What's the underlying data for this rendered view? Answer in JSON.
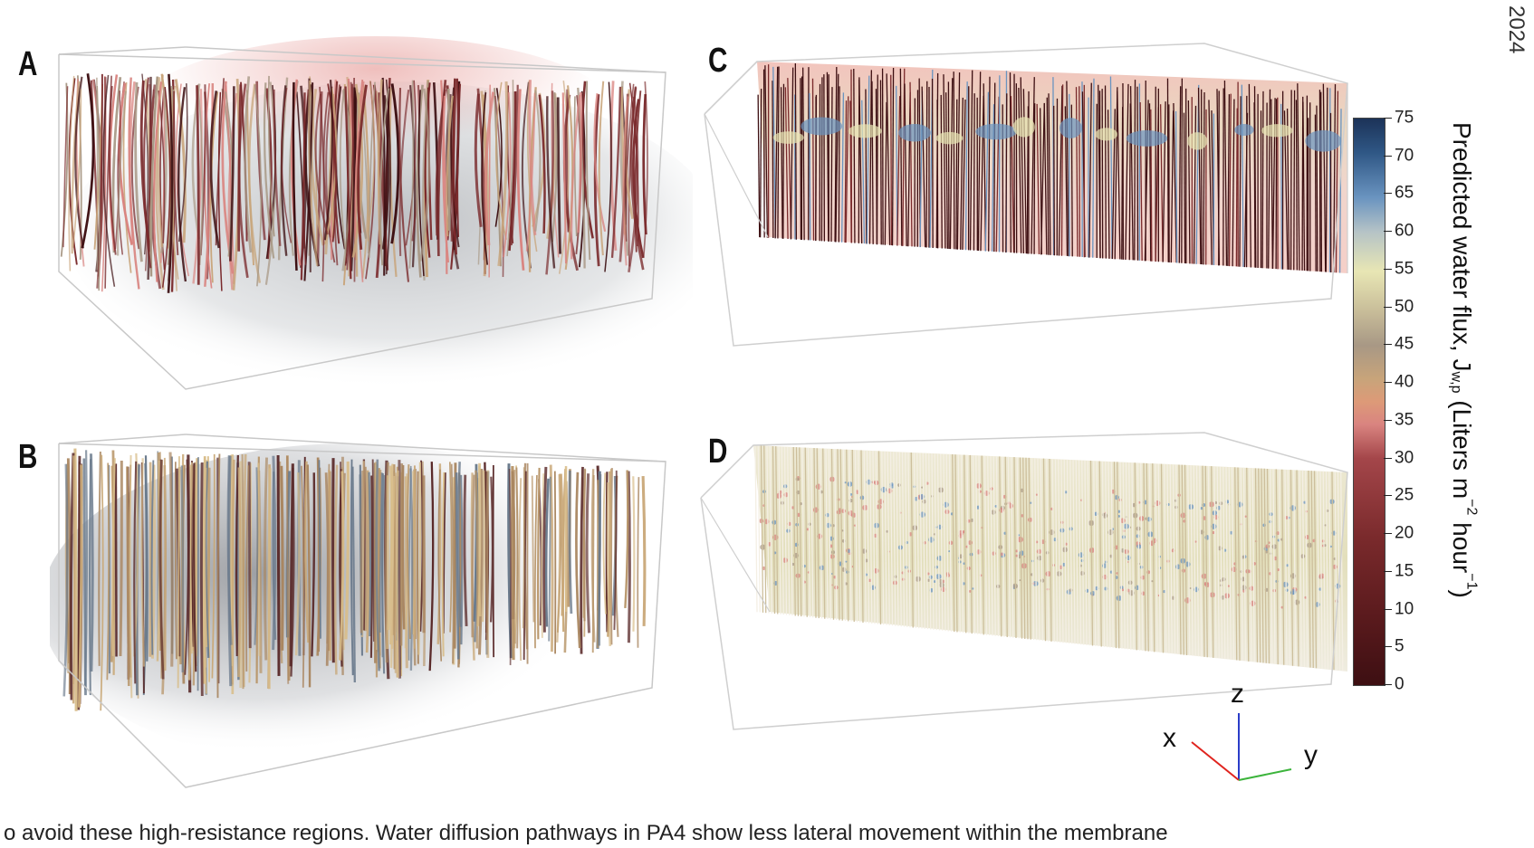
{
  "panels": {
    "a": "A",
    "b": "B",
    "c": "C",
    "d": "D"
  },
  "year_fragment": "2024",
  "colorbar": {
    "title_main": "Predicted water flux, J",
    "title_sub": "w,p",
    "title_units_open": " (Liters m",
    "title_sup1": "−2",
    "title_units_mid": " hour",
    "title_sup2": "−1",
    "title_units_close": ")",
    "ticks": [
      "75",
      "70",
      "65",
      "60",
      "55",
      "50",
      "45",
      "40",
      "35",
      "30",
      "25",
      "20",
      "15",
      "10",
      "5",
      "0"
    ],
    "min": 0,
    "max": 75,
    "colors": [
      "#3d0f12",
      "#7a2a2c",
      "#d98480",
      "#c8a47a",
      "#a89885",
      "#e8e6b4",
      "#6a94c0",
      "#1c3358"
    ]
  },
  "axes": {
    "x": "x",
    "y": "y",
    "z": "z"
  },
  "caption_fragment": "o avoid these high-resistance regions. Water diffusion pathways in PA4 show less lateral movement within the membrane"
}
